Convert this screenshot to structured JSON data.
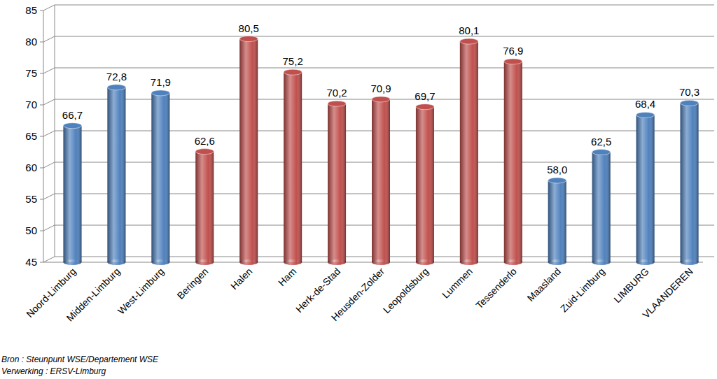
{
  "chart_data": {
    "type": "bar",
    "categories": [
      "Noord-Limburg",
      "Midden-Limburg",
      "West-Limburg",
      "Beringen",
      "Halen",
      "Ham",
      "Herk-de-Stad",
      "Heusden-Zolder",
      "Leopoldsburg",
      "Lummen",
      "Tessenderlo",
      "Maasland",
      "Zuid-Limburg",
      "LIMBURG",
      "VLAANDEREN"
    ],
    "values": [
      66.7,
      72.8,
      71.9,
      62.6,
      80.5,
      75.2,
      70.2,
      70.9,
      69.7,
      80.1,
      76.9,
      58.0,
      62.5,
      68.4,
      70.3
    ],
    "value_labels": [
      "66,7",
      "72,8",
      "71,9",
      "62,6",
      "80,5",
      "75,2",
      "70,2",
      "70,9",
      "69,7",
      "80,1",
      "76,9",
      "58,0",
      "62,5",
      "68,4",
      "70,3"
    ],
    "colors": [
      "#4f81bd",
      "#4f81bd",
      "#4f81bd",
      "#c0504d",
      "#c0504d",
      "#c0504d",
      "#c0504d",
      "#c0504d",
      "#c0504d",
      "#c0504d",
      "#c0504d",
      "#4f81bd",
      "#4f81bd",
      "#4f81bd",
      "#4f81bd"
    ],
    "ylim": [
      45,
      85
    ],
    "yticks": [
      45,
      50,
      55,
      60,
      65,
      70,
      75,
      80,
      85
    ],
    "grid": true,
    "data_labels": true,
    "annotations": [
      "Bron : Steunpunt WSE/Departement WSE",
      "Verwerking : ERSV-Limburg"
    ]
  }
}
